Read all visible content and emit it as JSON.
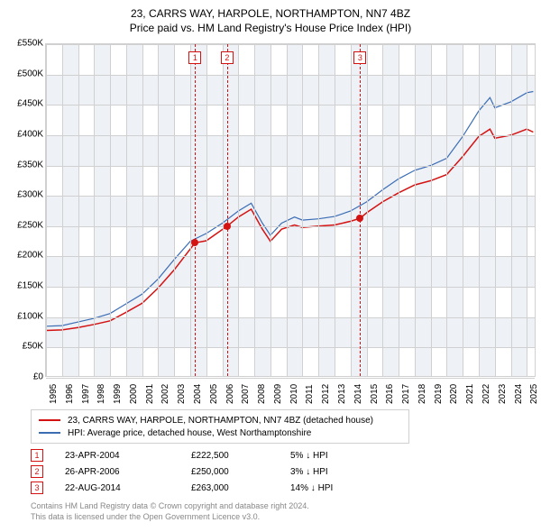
{
  "title": {
    "line1": "23, CARRS WAY, HARPOLE, NORTHAMPTON, NN7 4BZ",
    "line2": "Price paid vs. HM Land Registry's House Price Index (HPI)"
  },
  "chart": {
    "type": "line",
    "background_color": "#ffffff",
    "band_color": "#eef1f6",
    "grid_color": "#d0d0d0",
    "x": {
      "min": 1995,
      "max": 2025.6,
      "labels": [
        "1995",
        "1996",
        "1997",
        "1998",
        "1999",
        "2000",
        "2001",
        "2002",
        "2003",
        "2004",
        "2005",
        "2006",
        "2007",
        "2008",
        "2009",
        "2010",
        "2011",
        "2012",
        "2013",
        "2014",
        "2015",
        "2016",
        "2017",
        "2018",
        "2019",
        "2020",
        "2021",
        "2022",
        "2023",
        "2024",
        "2025"
      ]
    },
    "y": {
      "min": 0,
      "max": 550000,
      "step": 50000,
      "labels": [
        "£0",
        "£50K",
        "£100K",
        "£150K",
        "£200K",
        "£250K",
        "£300K",
        "£350K",
        "£400K",
        "£450K",
        "£500K",
        "£550K"
      ]
    },
    "series": [
      {
        "name": "23, CARRS WAY, HARPOLE, NORTHAMPTON, NN7 4BZ (detached house)",
        "color": "#d41212",
        "width": 1.5,
        "data": [
          [
            1995,
            78000
          ],
          [
            1996,
            79000
          ],
          [
            1997,
            83000
          ],
          [
            1998,
            88000
          ],
          [
            1999,
            94000
          ],
          [
            2000,
            108000
          ],
          [
            2001,
            123000
          ],
          [
            2002,
            148000
          ],
          [
            2003,
            178000
          ],
          [
            2004.3,
            222500
          ],
          [
            2005,
            226000
          ],
          [
            2006.3,
            250000
          ],
          [
            2007,
            265000
          ],
          [
            2007.8,
            278000
          ],
          [
            2008.5,
            245000
          ],
          [
            2009,
            225000
          ],
          [
            2009.7,
            245000
          ],
          [
            2010.5,
            252000
          ],
          [
            2011,
            248000
          ],
          [
            2012,
            250000
          ],
          [
            2013,
            252000
          ],
          [
            2014,
            258000
          ],
          [
            2014.6,
            263000
          ],
          [
            2015,
            272000
          ],
          [
            2016,
            290000
          ],
          [
            2017,
            305000
          ],
          [
            2018,
            318000
          ],
          [
            2019,
            325000
          ],
          [
            2020,
            335000
          ],
          [
            2021,
            365000
          ],
          [
            2022,
            398000
          ],
          [
            2022.7,
            410000
          ],
          [
            2023,
            395000
          ],
          [
            2024,
            400000
          ],
          [
            2025,
            410000
          ],
          [
            2025.4,
            405000
          ]
        ]
      },
      {
        "name": "HPI: Average price, detached house, West Northamptonshire",
        "color": "#3b6db5",
        "width": 1.2,
        "data": [
          [
            1995,
            85000
          ],
          [
            1996,
            86000
          ],
          [
            1997,
            92000
          ],
          [
            1998,
            98000
          ],
          [
            1999,
            106000
          ],
          [
            2000,
            122000
          ],
          [
            2001,
            138000
          ],
          [
            2002,
            163000
          ],
          [
            2003,
            195000
          ],
          [
            2004,
            225000
          ],
          [
            2005,
            238000
          ],
          [
            2006,
            255000
          ],
          [
            2007,
            275000
          ],
          [
            2007.8,
            288000
          ],
          [
            2008.5,
            255000
          ],
          [
            2009,
            235000
          ],
          [
            2009.7,
            255000
          ],
          [
            2010.5,
            265000
          ],
          [
            2011,
            260000
          ],
          [
            2012,
            262000
          ],
          [
            2013,
            266000
          ],
          [
            2014,
            275000
          ],
          [
            2015,
            290000
          ],
          [
            2016,
            310000
          ],
          [
            2017,
            328000
          ],
          [
            2018,
            342000
          ],
          [
            2019,
            350000
          ],
          [
            2020,
            362000
          ],
          [
            2021,
            398000
          ],
          [
            2022,
            440000
          ],
          [
            2022.7,
            462000
          ],
          [
            2023,
            445000
          ],
          [
            2024,
            455000
          ],
          [
            2025,
            470000
          ],
          [
            2025.4,
            472000
          ]
        ]
      }
    ],
    "markers": [
      {
        "n": "1",
        "x": 2004.3,
        "y": 222500
      },
      {
        "n": "2",
        "x": 2006.3,
        "y": 250000
      },
      {
        "n": "3",
        "x": 2014.6,
        "y": 263000
      }
    ]
  },
  "legend": {
    "s1": {
      "label": "23, CARRS WAY, HARPOLE, NORTHAMPTON, NN7 4BZ (detached house)",
      "color": "#d41212"
    },
    "s2": {
      "label": "HPI: Average price, detached house, West Northamptonshire",
      "color": "#3b6db5"
    }
  },
  "events": [
    {
      "n": "1",
      "date": "23-APR-2004",
      "price": "£222,500",
      "diff": "5% ↓ HPI"
    },
    {
      "n": "2",
      "date": "26-APR-2006",
      "price": "£250,000",
      "diff": "3% ↓ HPI"
    },
    {
      "n": "3",
      "date": "22-AUG-2014",
      "price": "£263,000",
      "diff": "14% ↓ HPI"
    }
  ],
  "footnote": {
    "line1": "Contains HM Land Registry data © Crown copyright and database right 2024.",
    "line2": "This data is licensed under the Open Government Licence v3.0."
  }
}
